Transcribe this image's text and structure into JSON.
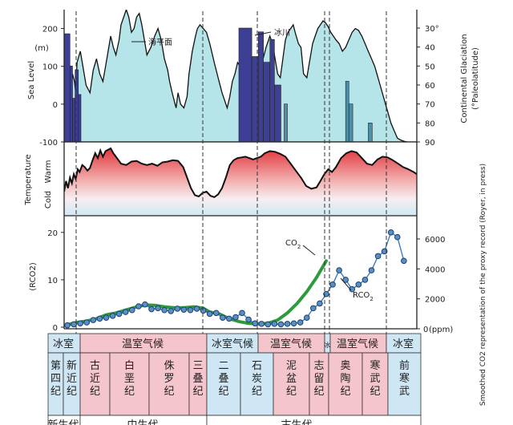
{
  "chart_data": [
    {
      "type": "area",
      "panel": "sea-level-and-glaciation",
      "ylabel": "Sea Level",
      "yunit": "(m)",
      "ylim": [
        -100,
        250
      ],
      "yticks": [
        "200",
        "100",
        "0",
        "-100"
      ],
      "y2label": "Continental Glaciation",
      "y2unit": "(°Paleolatitude)",
      "y2ticks": [
        "30°",
        "40",
        "50",
        "60",
        "70",
        "80",
        "90"
      ],
      "series": [
        {
          "name": "海平面",
          "color": "#b5e5e8",
          "x": [
            0,
            4,
            8,
            11,
            13,
            16,
            18,
            20,
            25,
            30,
            34,
            40,
            45,
            50,
            55,
            60,
            64,
            68,
            72,
            76,
            80,
            85,
            88,
            92,
            96,
            100,
            104,
            108,
            112,
            116,
            120,
            124,
            128,
            134,
            140,
            145,
            150,
            155,
            160,
            163,
            167,
            170,
            173,
            176,
            180,
            185,
            190,
            193,
            198,
            203,
            206,
            210,
            215,
            220,
            225,
            232,
            238,
            244,
            248,
            252,
            256,
            260,
            264,
            268,
            272,
            278,
            284,
            290,
            296,
            300,
            306,
            312,
            318,
            322,
            326,
            330,
            334,
            338,
            342,
            346,
            350,
            354,
            357,
            362,
            366,
            370,
            375,
            380,
            384,
            388,
            392,
            396,
            400,
            404,
            408,
            412,
            416,
            420,
            425,
            430,
            435,
            440,
            445,
            450,
            455,
            460,
            465,
            470,
            475,
            480,
            485,
            490,
            495,
            500,
            505,
            510,
            515,
            520,
            525,
            530,
            535,
            540,
            545
          ],
          "values": [
            -40,
            -25,
            -10,
            40,
            80,
            60,
            30,
            110,
            140,
            90,
            50,
            30,
            90,
            120,
            80,
            60,
            100,
            140,
            180,
            150,
            130,
            170,
            210,
            230,
            250,
            230,
            190,
            200,
            230,
            240,
            210,
            170,
            130,
            150,
            180,
            200,
            170,
            120,
            90,
            60,
            30,
            10,
            -10,
            30,
            0,
            -10,
            20,
            80,
            140,
            180,
            200,
            210,
            200,
            190,
            160,
            110,
            70,
            30,
            10,
            -10,
            20,
            60,
            80,
            110,
            100,
            120,
            100,
            60,
            30,
            80,
            110,
            150,
            180,
            160,
            120,
            80,
            70,
            120,
            170,
            190,
            200,
            210,
            190,
            160,
            150,
            80,
            70,
            120,
            160,
            180,
            200,
            210,
            220,
            215,
            205,
            190,
            180,
            170,
            160,
            140,
            150,
            170,
            190,
            200,
            195,
            180,
            160,
            140,
            120,
            100,
            70,
            40,
            10,
            -20,
            -50,
            -70,
            -90,
            -95,
            -98,
            -100,
            -100,
            -100,
            -100
          ]
        }
      ],
      "glaciation_bars": [
        {
          "x0": 0,
          "x1": 9,
          "paleolatitude": 33,
          "color": "#3d3f95"
        },
        {
          "x0": 9,
          "x1": 13,
          "paleolatitude": 50,
          "color": "#3d3f95"
        },
        {
          "x0": 13,
          "x1": 17,
          "paleolatitude": 67,
          "color": "#3d3f95"
        },
        {
          "x0": 17,
          "x1": 22,
          "paleolatitude": 52,
          "color": "#3d3f95"
        },
        {
          "x0": 22,
          "x1": 26,
          "paleolatitude": 65,
          "color": "#3d3f95"
        },
        {
          "x0": 270,
          "x1": 290,
          "paleolatitude": 30,
          "color": "#3d3f95"
        },
        {
          "x0": 290,
          "x1": 300,
          "paleolatitude": 45,
          "color": "#3d3f95"
        },
        {
          "x0": 300,
          "x1": 308,
          "paleolatitude": 32,
          "color": "#3d3f95"
        },
        {
          "x0": 308,
          "x1": 318,
          "paleolatitude": 48,
          "color": "#3d3f95"
        },
        {
          "x0": 318,
          "x1": 325,
          "paleolatitude": 36,
          "color": "#3d3f95"
        },
        {
          "x0": 325,
          "x1": 335,
          "paleolatitude": 60,
          "color": "#3d3f95"
        },
        {
          "x0": 340,
          "x1": 345,
          "paleolatitude": 70,
          "color": "#4f8fa8"
        },
        {
          "x0": 435,
          "x1": 440,
          "paleolatitude": 58,
          "color": "#4f8fa8"
        },
        {
          "x0": 440,
          "x1": 446,
          "paleolatitude": 70,
          "color": "#4f8fa8"
        },
        {
          "x0": 470,
          "x1": 476,
          "paleolatitude": 80,
          "color": "#4f8fa8"
        }
      ],
      "annotations": [
        {
          "text": "海平面",
          "x": 105,
          "y": 210
        },
        {
          "text": "冰川",
          "x": 300,
          "y": 220
        }
      ]
    },
    {
      "type": "area",
      "panel": "temperature",
      "ylabel": "Temperature",
      "ytick_labels": [
        "Warm",
        "Cold"
      ],
      "ylim": [
        0,
        10
      ],
      "x": [
        0,
        3,
        6,
        9,
        12,
        15,
        18,
        21,
        24,
        28,
        32,
        36,
        40,
        44,
        48,
        52,
        56,
        60,
        64,
        68,
        72,
        76,
        80,
        88,
        96,
        104,
        112,
        120,
        128,
        136,
        144,
        152,
        160,
        168,
        176,
        184,
        190,
        196,
        202,
        208,
        214,
        220,
        226,
        232,
        238,
        244,
        250,
        256,
        262,
        268,
        274,
        280,
        286,
        292,
        298,
        304,
        310,
        318,
        326,
        334,
        342,
        350,
        358,
        366,
        374,
        382,
        390,
        396,
        402,
        408,
        414,
        420,
        428,
        436,
        444,
        452,
        460,
        468,
        476,
        484,
        492,
        500,
        508,
        516,
        524,
        532,
        540,
        545
      ],
      "values": [
        3.0,
        4.5,
        3.5,
        5.0,
        4.2,
        5.5,
        4.8,
        6.2,
        5.8,
        6.8,
        6.5,
        6.0,
        6.4,
        7.5,
        8.5,
        7.8,
        8.9,
        8.0,
        8.8,
        9.0,
        9.2,
        8.5,
        8.0,
        7.0,
        6.8,
        7.3,
        7.4,
        7.0,
        6.8,
        7.0,
        6.7,
        7.2,
        7.3,
        7.5,
        7.4,
        6.5,
        5.0,
        3.5,
        2.5,
        2.3,
        2.8,
        3.0,
        2.4,
        2.2,
        2.6,
        3.5,
        5.0,
        6.8,
        7.5,
        7.8,
        7.9,
        8.0,
        7.8,
        7.6,
        7.8,
        8.0,
        8.5,
        8.8,
        8.7,
        8.4,
        8.0,
        7.0,
        6.0,
        5.0,
        3.8,
        3.4,
        3.6,
        4.5,
        5.5,
        6.2,
        5.8,
        6.5,
        7.8,
        8.5,
        8.8,
        8.6,
        7.8,
        7.0,
        6.8,
        7.6,
        8.0,
        7.9,
        7.5,
        7.0,
        6.5,
        6.2,
        5.8,
        5.5
      ]
    },
    {
      "type": "line",
      "panel": "co2",
      "ylabel": "(RCO2)",
      "ylim": [
        0,
        22
      ],
      "yticks": [
        "20",
        "10",
        "0"
      ],
      "y2label": "Smoothed CO2 representation of the proxy record (Royer, in press)",
      "y2unit": "(ppm)",
      "y2ticks": [
        "6000",
        "4000",
        "2000",
        "0"
      ],
      "series": [
        {
          "name": "RCO2",
          "color": "#3c7fc0",
          "marker": "circle",
          "x": [
            5,
            15,
            25,
            35,
            45,
            55,
            65,
            75,
            85,
            95,
            105,
            115,
            125,
            135,
            145,
            155,
            165,
            175,
            185,
            195,
            205,
            215,
            225,
            235,
            245,
            255,
            265,
            275,
            285,
            295,
            305,
            315,
            325,
            335,
            345,
            355,
            365,
            375,
            385,
            395,
            405,
            415,
            425,
            435,
            445,
            455,
            465,
            475,
            485,
            495,
            505,
            515,
            525
          ],
          "values": [
            0.4,
            0.6,
            0.8,
            1.0,
            1.5,
            1.8,
            2.0,
            2.4,
            2.8,
            3.2,
            3.6,
            4.4,
            4.8,
            3.8,
            4.0,
            3.6,
            3.4,
            3.9,
            3.7,
            3.6,
            3.9,
            3.5,
            2.8,
            3.0,
            2.0,
            1.8,
            2.1,
            3.0,
            1.6,
            0.8,
            0.7,
            0.6,
            0.7,
            0.6,
            0.7,
            0.8,
            1.0,
            2.0,
            4.0,
            5.0,
            7.0,
            9.0,
            12.0,
            10.0,
            8.0,
            9.0,
            10.0,
            12.0,
            15.0,
            16.0,
            20.0,
            19.0,
            14.0
          ]
        },
        {
          "name": "CO2",
          "color": "#2e9a3e",
          "x": [
            5,
            20,
            35,
            50,
            65,
            80,
            95,
            110,
            125,
            140,
            155,
            170,
            185,
            200,
            215,
            225,
            240,
            255,
            270,
            285,
            300,
            315,
            330,
            345,
            360,
            375,
            390,
            405
          ],
          "values": [
            0.5,
            1.0,
            1.3,
            1.8,
            2.6,
            3.0,
            3.6,
            4.2,
            4.7,
            4.6,
            4.3,
            4.1,
            4.1,
            4.3,
            4.0,
            3.2,
            2.8,
            1.8,
            1.2,
            0.8,
            0.7,
            0.8,
            1.5,
            3.0,
            5.0,
            7.5,
            10.5,
            14.0
          ]
        }
      ],
      "series_labels": [
        "CO",
        "2",
        "RCO",
        "2"
      ]
    }
  ],
  "timeline": {
    "boundaries": [
      0,
      0.023,
      0.066,
      0.146,
      0.201,
      0.252,
      0.299,
      0.359,
      0.416,
      0.444,
      0.488,
      0.542
    ],
    "climate_row": [
      {
        "label": "冰室",
        "from": 0,
        "to": 1,
        "color": "#cfe6f4"
      },
      {
        "label": "温室气候",
        "from": 1,
        "to": 5,
        "color": "#f4c5cc"
      },
      {
        "label": "冰室气候",
        "from": 5,
        "to": 7,
        "color": "#cfe6f4"
      },
      {
        "label": "温室气候",
        "from": 7,
        "to": 9,
        "color": "#f4c5cc"
      },
      {
        "label": "冰",
        "from": 9,
        "to": 9,
        "color": "#cfe6f4"
      },
      {
        "label": "温室气候",
        "from": 9,
        "to": 10,
        "color": "#f4c5cc"
      },
      {
        "label": "冰室",
        "from": 10,
        "to": 11,
        "color": "#cfe6f4"
      }
    ],
    "periods": [
      {
        "label": "第四纪",
        "color": "#cfe6f4"
      },
      {
        "label": "新近纪",
        "color": "#cfe6f4"
      },
      {
        "label": "古近纪",
        "color": "#f4c5cc"
      },
      {
        "label": "白垩纪",
        "color": "#f4c5cc"
      },
      {
        "label": "侏罗纪",
        "color": "#f4c5cc"
      },
      {
        "label": "三叠纪",
        "color": "#f4c5cc"
      },
      {
        "label": "二叠纪",
        "color": "#cfe6f4"
      },
      {
        "label": "石炭纪",
        "color": "#cfe6f4"
      },
      {
        "label": "泥盆纪",
        "color": "#f4c5cc"
      },
      {
        "label": "志留纪",
        "color": "#f4c5cc"
      },
      {
        "label": "奥陶纪",
        "color": "#f4c5cc"
      },
      {
        "label": "寒武纪",
        "color": "#f4c5cc"
      },
      {
        "label": "前寒武",
        "color": "#cfe6f4"
      }
    ],
    "eras": [
      "新生代",
      "中生代",
      "古生代"
    ]
  }
}
